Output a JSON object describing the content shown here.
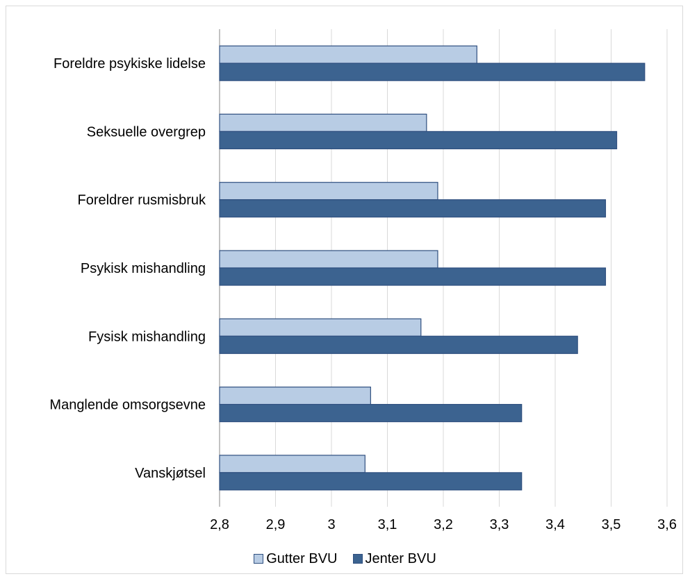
{
  "chart_data": {
    "type": "bar",
    "orientation": "horizontal",
    "categories": [
      "Foreldre psykiske lidelse",
      "Seksuelle overgrep",
      "Foreldrer rusmisbruk",
      "Psykisk mishandling",
      "Fysisk mishandling",
      "Manglende omsorgsevne",
      "Vanskjøtsel"
    ],
    "series": [
      {
        "name": "Gutter BVU",
        "color": "#b8cce4",
        "values": [
          3.26,
          3.17,
          3.19,
          3.19,
          3.16,
          3.07,
          3.06
        ]
      },
      {
        "name": "Jenter BVU",
        "color": "#3c6390",
        "values": [
          3.56,
          3.51,
          3.49,
          3.49,
          3.44,
          3.34,
          3.34
        ]
      }
    ],
    "xlim": [
      2.8,
      3.6
    ],
    "xticks": [
      "2,8",
      "2,9",
      "3",
      "3,1",
      "3,2",
      "3,3",
      "3,4",
      "3,5",
      "3,6"
    ],
    "xtick_values": [
      2.8,
      2.9,
      3.0,
      3.1,
      3.2,
      3.3,
      3.4,
      3.5,
      3.6
    ],
    "grid": "vertical",
    "legend_position": "bottom"
  }
}
